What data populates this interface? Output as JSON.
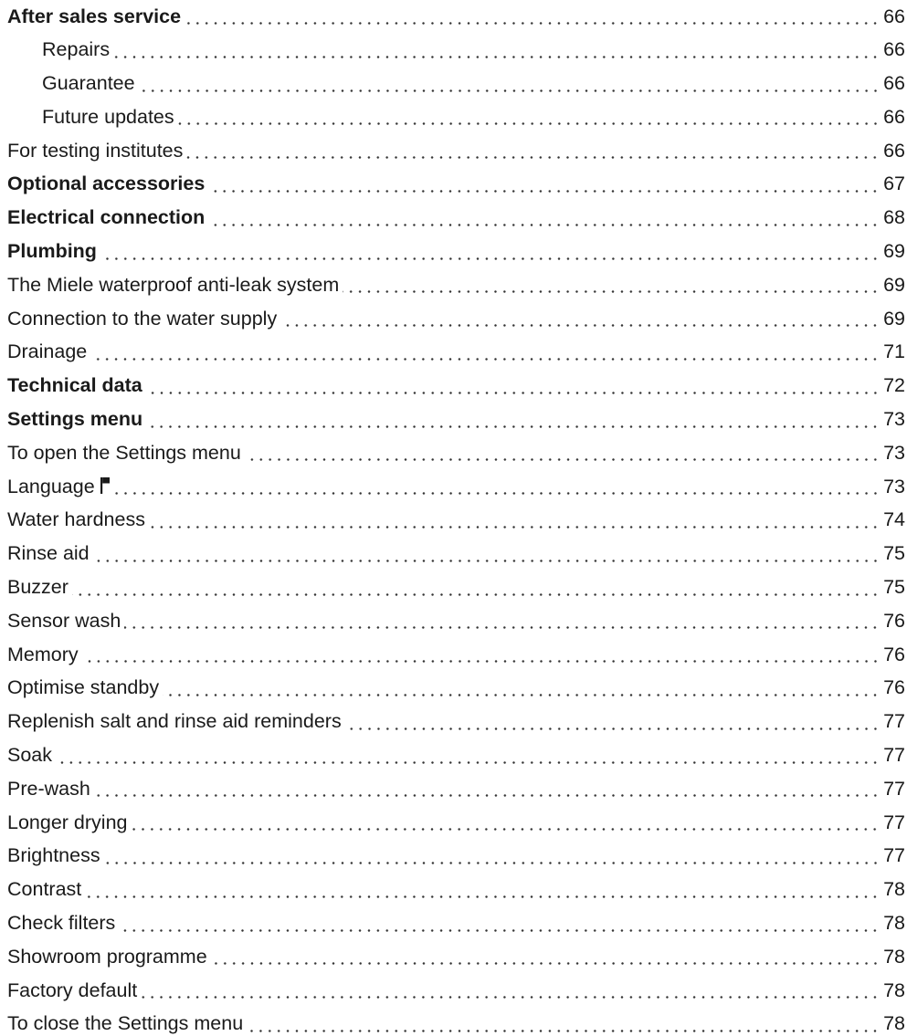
{
  "toc": {
    "entries": [
      {
        "title": "After sales service",
        "page": "66",
        "level": "main",
        "bold": true
      },
      {
        "title": "Repairs",
        "page": "66",
        "level": "sub",
        "bold": false
      },
      {
        "title": "Guarantee",
        "page": "66",
        "level": "sub",
        "bold": false
      },
      {
        "title": "Future updates",
        "page": "66",
        "level": "sub",
        "bold": false
      },
      {
        "title": "For testing institutes",
        "page": "66",
        "level": "item",
        "bold": false
      },
      {
        "title": "Optional accessories",
        "page": "67",
        "level": "main",
        "bold": true
      },
      {
        "title": "Electrical connection",
        "page": "68",
        "level": "main",
        "bold": true
      },
      {
        "title": "Plumbing",
        "page": "69",
        "level": "main",
        "bold": true
      },
      {
        "title": "The Miele waterproof anti-leak system",
        "page": "69",
        "level": "item",
        "bold": false
      },
      {
        "title": "Connection to the water supply",
        "page": "69",
        "level": "item",
        "bold": false
      },
      {
        "title": "Drainage",
        "page": "71",
        "level": "item",
        "bold": false
      },
      {
        "title": "Technical data",
        "page": "72",
        "level": "main",
        "bold": true
      },
      {
        "title": "Settings menu",
        "page": "73",
        "level": "main",
        "bold": true
      },
      {
        "title": "To open the Settings menu",
        "page": "73",
        "level": "item",
        "bold": false
      },
      {
        "title": "Language",
        "page": "73",
        "level": "item",
        "bold": false,
        "icon": "flag-icon"
      },
      {
        "title": "Water hardness",
        "page": "74",
        "level": "item",
        "bold": false
      },
      {
        "title": "Rinse aid",
        "page": "75",
        "level": "item",
        "bold": false
      },
      {
        "title": "Buzzer",
        "page": "75",
        "level": "item",
        "bold": false
      },
      {
        "title": "Sensor wash",
        "page": "76",
        "level": "item",
        "bold": false
      },
      {
        "title": "Memory",
        "page": "76",
        "level": "item",
        "bold": false
      },
      {
        "title": "Optimise standby",
        "page": "76",
        "level": "item",
        "bold": false
      },
      {
        "title": "Replenish salt and rinse aid reminders",
        "page": "77",
        "level": "item",
        "bold": false
      },
      {
        "title": "Soak",
        "page": "77",
        "level": "item",
        "bold": false
      },
      {
        "title": "Pre-wash",
        "page": "77",
        "level": "item",
        "bold": false
      },
      {
        "title": "Longer drying",
        "page": "77",
        "level": "item",
        "bold": false
      },
      {
        "title": "Brightness",
        "page": "77",
        "level": "item",
        "bold": false
      },
      {
        "title": "Contrast",
        "page": "78",
        "level": "item",
        "bold": false
      },
      {
        "title": "Check filters",
        "page": "78",
        "level": "item",
        "bold": false
      },
      {
        "title": "Showroom programme",
        "page": "78",
        "level": "item",
        "bold": false
      },
      {
        "title": "Factory default",
        "page": "78",
        "level": "item",
        "bold": false
      },
      {
        "title": "To close the Settings menu",
        "page": "78",
        "level": "item",
        "bold": false
      }
    ]
  }
}
